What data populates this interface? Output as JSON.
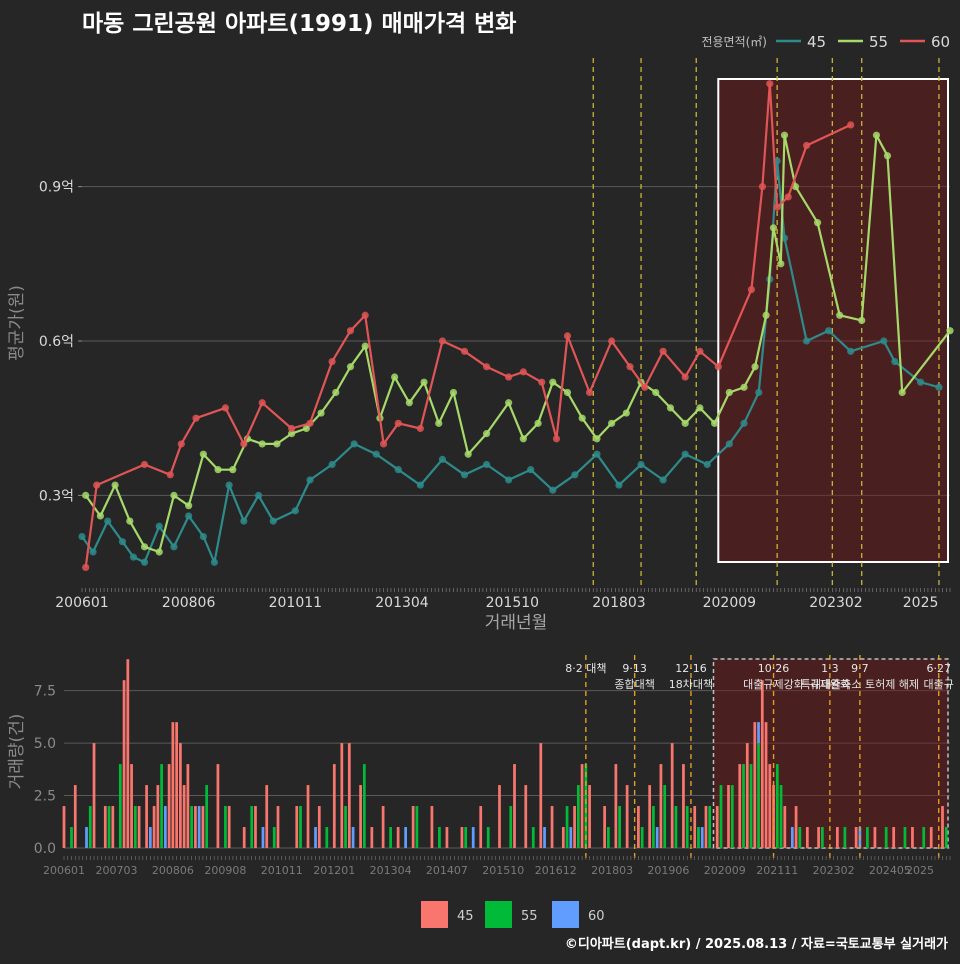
{
  "chart_data": [
    {
      "type": "line",
      "title": "마동 그린공원 아파트(1991) 매매가격 변화",
      "xlabel": "거래년월",
      "ylabel": "평균가(원)",
      "x_ticks": [
        "200601",
        "200806",
        "201011",
        "201304",
        "201510",
        "201803",
        "202009",
        "202302",
        "2025"
      ],
      "y_ticks": [
        {
          "value": 0.3,
          "label": "0.3억"
        },
        {
          "value": 0.6,
          "label": "0.6억"
        },
        {
          "value": 0.9,
          "label": "0.9억"
        }
      ],
      "xlim": [
        "2006-01",
        "2025-09"
      ],
      "ylim": [
        0.12,
        1.15
      ],
      "grid": true,
      "legend": {
        "title": "전용면적(㎡)",
        "position": "top-right",
        "items": [
          "45",
          "55",
          "60"
        ]
      },
      "colors": {
        "45": "#2e8b8b",
        "55": "#a6d96a",
        "60": "#e05555"
      },
      "policy_lines": [
        "2017-08",
        "2018-09",
        "2019-12",
        "2021-10",
        "2023-01",
        "2023-09",
        "2025-06"
      ],
      "highlight_range": [
        "2020-06",
        "2025-09"
      ],
      "series": [
        {
          "name": "45",
          "points": [
            [
              "2006-01",
              0.22
            ],
            [
              "2006-04",
              0.19
            ],
            [
              "2006-08",
              0.25
            ],
            [
              "2006-12",
              0.21
            ],
            [
              "2007-03",
              0.18
            ],
            [
              "2007-06",
              0.17
            ],
            [
              "2007-10",
              0.24
            ],
            [
              "2008-02",
              0.2
            ],
            [
              "2008-06",
              0.26
            ],
            [
              "2008-10",
              0.22
            ],
            [
              "2009-01",
              0.17
            ],
            [
              "2009-05",
              0.32
            ],
            [
              "2009-09",
              0.25
            ],
            [
              "2010-01",
              0.3
            ],
            [
              "2010-05",
              0.25
            ],
            [
              "2010-11",
              0.27
            ],
            [
              "2011-03",
              0.33
            ],
            [
              "2011-09",
              0.36
            ],
            [
              "2012-03",
              0.4
            ],
            [
              "2012-09",
              0.38
            ],
            [
              "2013-03",
              0.35
            ],
            [
              "2013-09",
              0.32
            ],
            [
              "2014-03",
              0.37
            ],
            [
              "2014-09",
              0.34
            ],
            [
              "2015-03",
              0.36
            ],
            [
              "2015-09",
              0.33
            ],
            [
              "2016-03",
              0.35
            ],
            [
              "2016-09",
              0.31
            ],
            [
              "2017-03",
              0.34
            ],
            [
              "2017-09",
              0.38
            ],
            [
              "2018-03",
              0.32
            ],
            [
              "2018-09",
              0.36
            ],
            [
              "2019-03",
              0.33
            ],
            [
              "2019-09",
              0.38
            ],
            [
              "2020-03",
              0.36
            ],
            [
              "2020-09",
              0.4
            ],
            [
              "2021-01",
              0.44
            ],
            [
              "2021-05",
              0.5
            ],
            [
              "2021-08",
              0.72
            ],
            [
              "2021-10",
              0.95
            ],
            [
              "2021-12",
              0.8
            ],
            [
              "2022-06",
              0.6
            ],
            [
              "2022-12",
              0.62
            ],
            [
              "2023-06",
              0.58
            ],
            [
              "2024-03",
              0.6
            ],
            [
              "2024-06",
              0.56
            ],
            [
              "2025-01",
              0.52
            ],
            [
              "2025-06",
              0.51
            ]
          ]
        },
        {
          "name": "55",
          "points": [
            [
              "2006-02",
              0.3
            ],
            [
              "2006-06",
              0.26
            ],
            [
              "2006-10",
              0.32
            ],
            [
              "2007-02",
              0.25
            ],
            [
              "2007-06",
              0.2
            ],
            [
              "2007-10",
              0.19
            ],
            [
              "2008-02",
              0.3
            ],
            [
              "2008-06",
              0.28
            ],
            [
              "2008-10",
              0.38
            ],
            [
              "2009-02",
              0.35
            ],
            [
              "2009-06",
              0.35
            ],
            [
              "2009-10",
              0.41
            ],
            [
              "2010-02",
              0.4
            ],
            [
              "2010-06",
              0.4
            ],
            [
              "2010-10",
              0.42
            ],
            [
              "2011-02",
              0.43
            ],
            [
              "2011-06",
              0.46
            ],
            [
              "2011-10",
              0.5
            ],
            [
              "2012-02",
              0.55
            ],
            [
              "2012-06",
              0.59
            ],
            [
              "2012-10",
              0.45
            ],
            [
              "2013-02",
              0.53
            ],
            [
              "2013-06",
              0.48
            ],
            [
              "2013-10",
              0.52
            ],
            [
              "2014-02",
              0.44
            ],
            [
              "2014-06",
              0.5
            ],
            [
              "2014-10",
              0.38
            ],
            [
              "2015-03",
              0.42
            ],
            [
              "2015-09",
              0.48
            ],
            [
              "2016-01",
              0.41
            ],
            [
              "2016-05",
              0.44
            ],
            [
              "2016-09",
              0.52
            ],
            [
              "2017-01",
              0.5
            ],
            [
              "2017-05",
              0.45
            ],
            [
              "2017-09",
              0.41
            ],
            [
              "2018-01",
              0.44
            ],
            [
              "2018-05",
              0.46
            ],
            [
              "2018-09",
              0.52
            ],
            [
              "2019-01",
              0.5
            ],
            [
              "2019-05",
              0.47
            ],
            [
              "2019-09",
              0.44
            ],
            [
              "2020-01",
              0.47
            ],
            [
              "2020-05",
              0.44
            ],
            [
              "2020-09",
              0.5
            ],
            [
              "2021-01",
              0.51
            ],
            [
              "2021-04",
              0.55
            ],
            [
              "2021-07",
              0.65
            ],
            [
              "2021-09",
              0.82
            ],
            [
              "2021-11",
              0.75
            ],
            [
              "2021-12",
              1.0
            ],
            [
              "2022-03",
              0.9
            ],
            [
              "2022-09",
              0.83
            ],
            [
              "2023-03",
              0.65
            ],
            [
              "2023-09",
              0.64
            ],
            [
              "2024-01",
              1.0
            ],
            [
              "2024-04",
              0.96
            ],
            [
              "2024-08",
              0.5
            ],
            [
              "2025-09",
              0.62
            ]
          ]
        },
        {
          "name": "60",
          "points": [
            [
              "2006-02",
              0.16
            ],
            [
              "2006-05",
              0.32
            ],
            [
              "2007-06",
              0.36
            ],
            [
              "2008-01",
              0.34
            ],
            [
              "2008-04",
              0.4
            ],
            [
              "2008-08",
              0.45
            ],
            [
              "2009-04",
              0.47
            ],
            [
              "2009-09",
              0.4
            ],
            [
              "2010-02",
              0.48
            ],
            [
              "2010-10",
              0.43
            ],
            [
              "2011-03",
              0.44
            ],
            [
              "2011-09",
              0.56
            ],
            [
              "2012-02",
              0.62
            ],
            [
              "2012-06",
              0.65
            ],
            [
              "2012-11",
              0.4
            ],
            [
              "2013-03",
              0.44
            ],
            [
              "2013-09",
              0.43
            ],
            [
              "2014-03",
              0.6
            ],
            [
              "2014-09",
              0.58
            ],
            [
              "2015-03",
              0.55
            ],
            [
              "2015-09",
              0.53
            ],
            [
              "2016-01",
              0.54
            ],
            [
              "2016-06",
              0.52
            ],
            [
              "2016-10",
              0.41
            ],
            [
              "2017-01",
              0.61
            ],
            [
              "2017-07",
              0.5
            ],
            [
              "2018-01",
              0.6
            ],
            [
              "2018-06",
              0.55
            ],
            [
              "2018-10",
              0.51
            ],
            [
              "2019-03",
              0.58
            ],
            [
              "2019-09",
              0.53
            ],
            [
              "2020-01",
              0.58
            ],
            [
              "2020-06",
              0.55
            ],
            [
              "2021-03",
              0.7
            ],
            [
              "2021-06",
              0.9
            ],
            [
              "2021-08",
              1.1
            ],
            [
              "2021-10",
              0.86
            ],
            [
              "2022-01",
              0.88
            ],
            [
              "2022-06",
              0.98
            ],
            [
              "2023-06",
              1.02
            ]
          ]
        }
      ]
    },
    {
      "type": "bar",
      "ylabel": "거래량(건)",
      "x_ticks": [
        "200601",
        "200703",
        "200806",
        "200908",
        "201011",
        "201201",
        "201304",
        "201407",
        "201510",
        "201612",
        "201803",
        "201906",
        "202009",
        "202111",
        "202302",
        "202405",
        "2025"
      ],
      "y_ticks": [
        {
          "value": 0,
          "label": "0.0"
        },
        {
          "value": 2.5,
          "label": "2.5"
        },
        {
          "value": 5,
          "label": "5.0"
        },
        {
          "value": 7.5,
          "label": "7.5"
        }
      ],
      "ylim": [
        0,
        9.2
      ],
      "legend": {
        "position": "bottom",
        "items": [
          "45",
          "55",
          "60"
        ]
      },
      "colors": {
        "45": "#f8766d",
        "55": "#00ba38",
        "60": "#619cff"
      },
      "events": [
        {
          "date": "2017-08",
          "lines": [
            "8·2 대책"
          ]
        },
        {
          "date": "2018-09",
          "lines": [
            "9·13",
            "종합대책"
          ]
        },
        {
          "date": "2019-12",
          "lines": [
            "12·16",
            "18차대책"
          ]
        },
        {
          "date": "2021-10",
          "lines": [
            "10·26",
            "대출규제강화"
          ]
        },
        {
          "date": "2023-01",
          "lines": [
            "1·3",
            "규제완화"
          ]
        },
        {
          "date": "2023-09",
          "lines": [
            "9·7",
            "특례대출축소 토허제 해제"
          ]
        },
        {
          "date": "2025-06",
          "lines": [
            "6·27",
            "대출규"
          ]
        }
      ],
      "highlight_range": [
        "2020-06",
        "2025-09"
      ],
      "series": [
        {
          "name": "45",
          "x": [
            "2006-01",
            "2006-04",
            "2006-09",
            "2006-12",
            "2007-02",
            "2007-05",
            "2007-06",
            "2007-07",
            "2007-09",
            "2007-11",
            "2008-01",
            "2008-02",
            "2008-05",
            "2008-06",
            "2008-07",
            "2008-08",
            "2008-09",
            "2008-10",
            "2008-12",
            "2009-02",
            "2009-06",
            "2009-09",
            "2010-01",
            "2010-04",
            "2010-07",
            "2010-10",
            "2011-03",
            "2011-06",
            "2011-09",
            "2012-01",
            "2012-03",
            "2012-05",
            "2012-08",
            "2012-11",
            "2013-02",
            "2013-06",
            "2013-10",
            "2014-03",
            "2014-07",
            "2014-11",
            "2015-04",
            "2015-09",
            "2016-01",
            "2016-04",
            "2016-08",
            "2016-11",
            "2017-02",
            "2017-05",
            "2017-07",
            "2017-09",
            "2018-01",
            "2018-04",
            "2018-07",
            "2018-10",
            "2019-01",
            "2019-04",
            "2019-07",
            "2019-10",
            "2020-01",
            "2020-04",
            "2020-07",
            "2020-10",
            "2021-01",
            "2021-03",
            "2021-05",
            "2021-07",
            "2021-08",
            "2021-09",
            "2021-10",
            "2022-01",
            "2022-04",
            "2022-07",
            "2022-10",
            "2023-03",
            "2023-08",
            "2024-01",
            "2024-06",
            "2024-11",
            "2025-04",
            "2025-07"
          ],
          "values": [
            2,
            3,
            5,
            2,
            2,
            8,
            9,
            4,
            2,
            3,
            2,
            3,
            4,
            6,
            6,
            5,
            3,
            4,
            2,
            2,
            4,
            2,
            1,
            2,
            3,
            2,
            2,
            3,
            2,
            4,
            5,
            5,
            3,
            1,
            2,
            1,
            2,
            2,
            1,
            1,
            2,
            3,
            4,
            3,
            5,
            2,
            1,
            2,
            4,
            3,
            2,
            4,
            3,
            2,
            3,
            4,
            5,
            4,
            2,
            2,
            2,
            3,
            4,
            5,
            6,
            8,
            6,
            4,
            3,
            2,
            2,
            1,
            1,
            1,
            1,
            1,
            1,
            1,
            1,
            2
          ]
        },
        {
          "name": "55",
          "x": [
            "2006-03",
            "2006-08",
            "2007-01",
            "2007-04",
            "2007-08",
            "2008-03",
            "2008-11",
            "2009-03",
            "2009-08",
            "2010-03",
            "2010-09",
            "2011-04",
            "2011-11",
            "2012-04",
            "2012-09",
            "2013-04",
            "2013-11",
            "2014-05",
            "2014-12",
            "2015-06",
            "2015-12",
            "2016-06",
            "2017-03",
            "2017-06",
            "2017-08",
            "2018-02",
            "2018-05",
            "2018-11",
            "2019-02",
            "2019-05",
            "2019-08",
            "2019-11",
            "2020-02",
            "2020-05",
            "2020-08",
            "2020-11",
            "2021-02",
            "2021-04",
            "2021-06",
            "2021-11",
            "2021-12",
            "2022-05",
            "2022-11",
            "2023-05",
            "2023-11",
            "2024-04",
            "2024-09",
            "2025-02",
            "2025-08"
          ],
          "values": [
            1,
            2,
            2,
            4,
            2,
            4,
            2,
            3,
            2,
            2,
            1,
            2,
            1,
            2,
            4,
            1,
            2,
            1,
            1,
            1,
            2,
            1,
            2,
            3,
            4,
            1,
            2,
            1,
            2,
            3,
            2,
            2,
            1,
            2,
            3,
            3,
            4,
            4,
            5,
            4,
            3,
            1,
            1,
            1,
            1,
            1,
            1,
            1,
            1
          ]
        },
        {
          "name": "60",
          "x": [
            "2006-07",
            "2007-12",
            "2008-04",
            "2009-01",
            "2010-06",
            "2011-08",
            "2012-06",
            "2013-08",
            "2015-02",
            "2016-09",
            "2017-04",
            "2019-03",
            "2020-03",
            "2021-06",
            "2022-03",
            "2023-09"
          ],
          "values": [
            1,
            1,
            2,
            2,
            1,
            1,
            1,
            1,
            1,
            1,
            1,
            1,
            1,
            1,
            1,
            1
          ]
        }
      ]
    }
  ],
  "footer": "©디아파트(dapt.kr) / 2025.08.13 / 자료=국토교통부 실거래가"
}
